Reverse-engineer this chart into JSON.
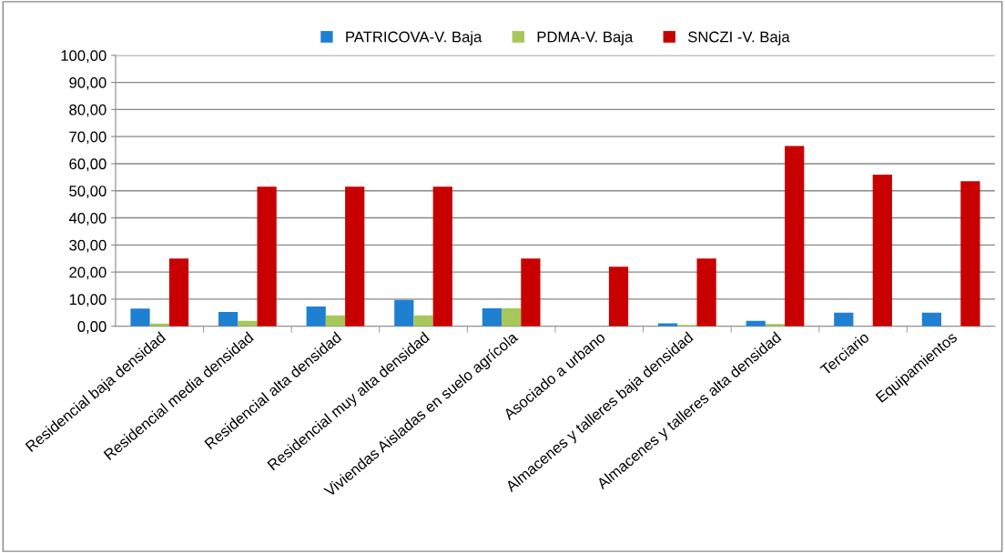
{
  "chart_data": {
    "type": "bar",
    "categories": [
      "Residencial baja densidad",
      "Residencial media densidad",
      "Residencial alta densidad",
      "Residencial muy alta densidad",
      "Viviendas Aisladas en suelo agrícola",
      "Asociado a urbano",
      "Almacenes y talleres baja densidad",
      "Almacenes y talleres alta densidad",
      "Terciario",
      "Equipamientos"
    ],
    "series": [
      {
        "name": "PATRICOVA-V. Baja",
        "color": "#1f80d2",
        "values": [
          6.5,
          5.3,
          7.3,
          9.7,
          6.6,
          null,
          1.1,
          2,
          5,
          5
        ]
      },
      {
        "name": "PDMA-V. Baja",
        "color": "#a6c75a",
        "values": [
          1,
          2,
          4,
          4,
          6.6,
          null,
          0.5,
          0.8,
          null,
          null
        ]
      },
      {
        "name": "SNCZI -V. Baja",
        "color": "#c80000",
        "values": [
          25,
          51.5,
          51.5,
          51.5,
          25,
          22,
          25,
          66.5,
          56,
          53.5
        ]
      }
    ],
    "ylim": [
      0,
      100
    ],
    "yticks": [
      {
        "value": 0,
        "label": "0,00"
      },
      {
        "value": 10,
        "label": "10,00"
      },
      {
        "value": 20,
        "label": "20,00"
      },
      {
        "value": 30,
        "label": "30,00"
      },
      {
        "value": 40,
        "label": "40,00"
      },
      {
        "value": 50,
        "label": "50,00"
      },
      {
        "value": 60,
        "label": "60,00"
      },
      {
        "value": 70,
        "label": "70,00"
      },
      {
        "value": 80,
        "label": "80,00"
      },
      {
        "value": 90,
        "label": "90,00"
      },
      {
        "value": 100,
        "label": "100,00"
      }
    ],
    "grid": "y",
    "legend": "top"
  }
}
